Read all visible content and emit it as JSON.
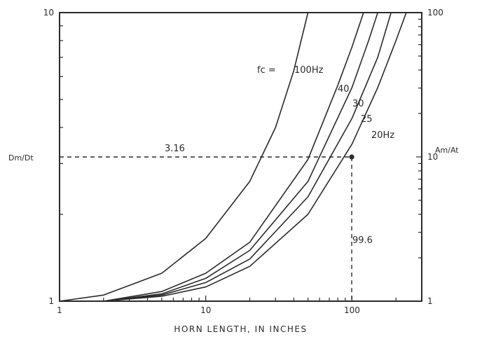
{
  "chart_data": {
    "type": "line",
    "title": "",
    "xlabel": "HORN LENGTH, IN INCHES",
    "ylabel_left": "Dm/Dt",
    "ylabel_right": "Am/At",
    "x_scale": "log",
    "y_scale": "log",
    "xlim": [
      1,
      300
    ],
    "ylim_left": [
      1,
      10
    ],
    "ylim_right": [
      1,
      100
    ],
    "x_tick_labels": [
      "1",
      "10",
      "100"
    ],
    "y_left_tick_labels": [
      "1",
      "10"
    ],
    "y_right_tick_labels": [
      "1",
      "10",
      "100"
    ],
    "grid": false,
    "legend_prefix": "fc =",
    "series": [
      {
        "name": "100Hz",
        "points": [
          [
            1,
            1.0
          ],
          [
            2,
            1.05
          ],
          [
            5,
            1.25
          ],
          [
            10,
            1.65
          ],
          [
            20,
            2.6
          ],
          [
            30,
            4.0
          ],
          [
            40,
            6.3
          ],
          [
            50,
            10
          ]
        ]
      },
      {
        "name": "40",
        "points": [
          [
            2,
            1.0
          ],
          [
            5,
            1.08
          ],
          [
            10,
            1.25
          ],
          [
            20,
            1.6
          ],
          [
            50,
            3.1
          ],
          [
            80,
            5.6
          ],
          [
            100,
            7.6
          ],
          [
            120,
            10
          ]
        ]
      },
      {
        "name": "30",
        "points": [
          [
            2,
            1.0
          ],
          [
            5,
            1.06
          ],
          [
            10,
            1.2
          ],
          [
            20,
            1.5
          ],
          [
            50,
            2.6
          ],
          [
            100,
            5.5
          ],
          [
            130,
            8.0
          ],
          [
            150,
            10
          ]
        ]
      },
      {
        "name": "25",
        "points": [
          [
            2,
            1.0
          ],
          [
            5,
            1.05
          ],
          [
            10,
            1.16
          ],
          [
            20,
            1.4
          ],
          [
            50,
            2.3
          ],
          [
            100,
            4.3
          ],
          [
            150,
            7.0
          ],
          [
            185,
            10
          ]
        ]
      },
      {
        "name": "20Hz",
        "points": [
          [
            2,
            1.0
          ],
          [
            5,
            1.04
          ],
          [
            10,
            1.12
          ],
          [
            20,
            1.32
          ],
          [
            50,
            2.0
          ],
          [
            100,
            3.5
          ],
          [
            150,
            5.5
          ],
          [
            200,
            8.0
          ],
          [
            235,
            10
          ]
        ]
      }
    ],
    "annotations": [
      {
        "text": "3.16",
        "y": 3.16
      },
      {
        "text": "99.6",
        "x": 99.6
      }
    ],
    "marker": {
      "x": 99.6,
      "y": 3.16
    }
  }
}
